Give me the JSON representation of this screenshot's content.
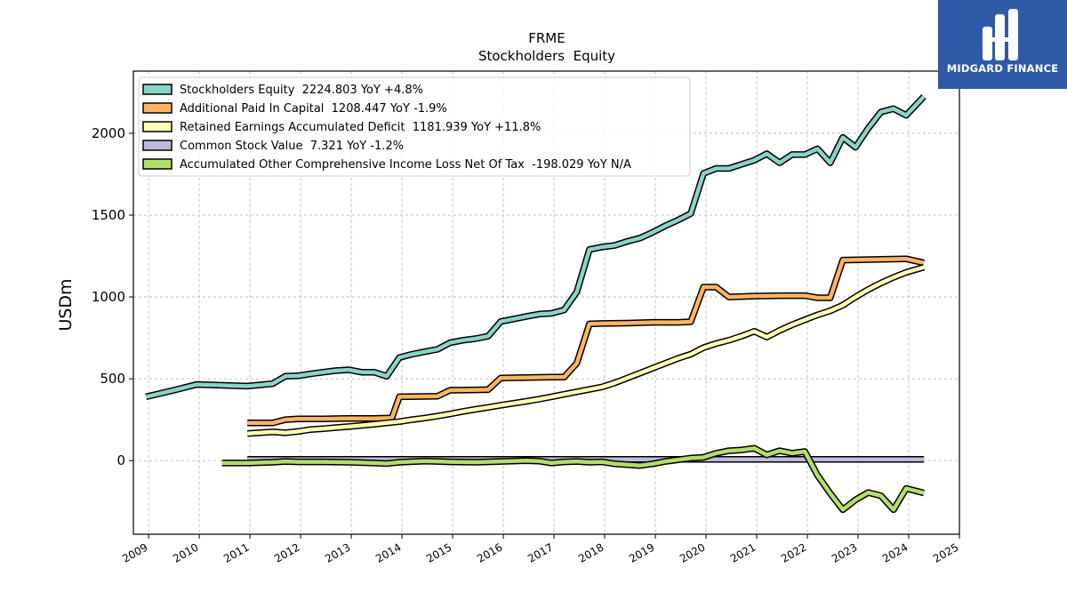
{
  "brand": {
    "name": "MIDGARD FINANCE",
    "bg_color": "#2f5aa8"
  },
  "chart_data": {
    "type": "line",
    "title": "FRME",
    "subtitle": "Stockholders  Equity",
    "ylabel": "USDm",
    "xlabel": "",
    "xlim": [
      2008.7,
      2025.0
    ],
    "ylim": [
      -450,
      2380
    ],
    "x_ticks": [
      2009,
      2010,
      2011,
      2012,
      2013,
      2014,
      2015,
      2016,
      2017,
      2018,
      2019,
      2020,
      2021,
      2022,
      2023,
      2024,
      2025
    ],
    "y_ticks": [
      0,
      500,
      1000,
      1500,
      2000
    ],
    "grid": true,
    "legend_position": "top-left",
    "series": [
      {
        "name": "Stockholders Equity",
        "legend_label": "Stockholders Equity  2224.803 YoY +4.8%",
        "color": "#8ad3c7",
        "x": [
          2008.95,
          2009.5,
          2009.95,
          2010.95,
          2011.45,
          2011.7,
          2011.95,
          2012.2,
          2012.45,
          2012.7,
          2012.95,
          2013.2,
          2013.45,
          2013.7,
          2013.95,
          2014.2,
          2014.45,
          2014.7,
          2014.95,
          2015.2,
          2015.45,
          2015.7,
          2015.95,
          2016.2,
          2016.45,
          2016.7,
          2016.95,
          2017.2,
          2017.45,
          2017.7,
          2017.95,
          2018.2,
          2018.45,
          2018.7,
          2018.95,
          2019.2,
          2019.45,
          2019.7,
          2019.95,
          2020.2,
          2020.45,
          2020.7,
          2020.95,
          2021.2,
          2021.45,
          2021.7,
          2021.95,
          2022.2,
          2022.45,
          2022.7,
          2022.95,
          2023.2,
          2023.45,
          2023.7,
          2023.95,
          2024.3
        ],
        "values": [
          390,
          430,
          465,
          455,
          470,
          515,
          518,
          530,
          540,
          550,
          555,
          540,
          540,
          515,
          630,
          650,
          665,
          680,
          720,
          735,
          745,
          760,
          850,
          865,
          880,
          895,
          900,
          920,
          1030,
          1290,
          1305,
          1315,
          1340,
          1360,
          1395,
          1435,
          1470,
          1510,
          1755,
          1785,
          1785,
          1810,
          1835,
          1875,
          1820,
          1870,
          1870,
          1905,
          1820,
          1975,
          1915,
          2030,
          2130,
          2150,
          2110,
          2224.8
        ]
      },
      {
        "name": "Additional Paid In Capital",
        "legend_label": "Additional Paid In Capital  1208.447 YoY -1.9%",
        "color": "#fdb462",
        "x": [
          2010.95,
          2011.45,
          2011.7,
          2011.95,
          2012.45,
          2012.95,
          2013.45,
          2013.8,
          2013.95,
          2014.45,
          2014.7,
          2014.95,
          2015.45,
          2015.7,
          2015.95,
          2016.45,
          2016.95,
          2017.2,
          2017.45,
          2017.7,
          2017.95,
          2018.45,
          2018.95,
          2019.45,
          2019.7,
          2019.95,
          2020.2,
          2020.45,
          2020.95,
          2021.45,
          2021.7,
          2021.95,
          2022.2,
          2022.45,
          2022.7,
          2023.45,
          2023.95,
          2024.3
        ],
        "values": [
          230,
          230,
          250,
          255,
          255,
          258,
          258,
          260,
          390,
          392,
          393,
          430,
          432,
          433,
          505,
          507,
          510,
          510,
          595,
          835,
          838,
          840,
          845,
          845,
          848,
          1060,
          1060,
          1000,
          1005,
          1008,
          1008,
          1008,
          995,
          995,
          1225,
          1230,
          1233,
          1208.4
        ]
      },
      {
        "name": "Retained Earnings Accumulated Deficit",
        "legend_label": "Retained Earnings Accumulated Deficit  1181.939 YoY +11.8%",
        "color": "#ffffb3",
        "x": [
          2010.95,
          2011.45,
          2011.7,
          2011.95,
          2012.2,
          2012.45,
          2012.7,
          2012.95,
          2013.2,
          2013.45,
          2013.7,
          2013.95,
          2014.2,
          2014.45,
          2014.7,
          2014.95,
          2015.2,
          2015.45,
          2015.7,
          2015.95,
          2016.2,
          2016.45,
          2016.7,
          2016.95,
          2017.2,
          2017.45,
          2017.7,
          2017.95,
          2018.2,
          2018.45,
          2018.7,
          2018.95,
          2019.2,
          2019.45,
          2019.7,
          2019.95,
          2020.2,
          2020.45,
          2020.7,
          2020.95,
          2021.2,
          2021.45,
          2021.7,
          2021.95,
          2022.2,
          2022.45,
          2022.7,
          2022.95,
          2023.2,
          2023.45,
          2023.7,
          2023.95,
          2024.3
        ],
        "values": [
          165,
          175,
          170,
          178,
          190,
          195,
          202,
          208,
          215,
          222,
          230,
          238,
          250,
          260,
          272,
          285,
          300,
          313,
          325,
          338,
          350,
          362,
          375,
          390,
          405,
          420,
          435,
          450,
          475,
          505,
          535,
          565,
          595,
          625,
          650,
          690,
          715,
          735,
          760,
          790,
          755,
          795,
          830,
          860,
          890,
          915,
          950,
          1000,
          1045,
          1085,
          1120,
          1150,
          1181.9
        ]
      },
      {
        "name": "Common Stock Value",
        "legend_label": "Common Stock Value  7.321 YoY -1.2%",
        "color": "#bebada",
        "x": [
          2010.95,
          2016.0,
          2021.0,
          2024.3
        ],
        "values": [
          8,
          8,
          7.4,
          7.3
        ]
      },
      {
        "name": "Accumulated Other Comprehensive Income Loss Net Of Tax",
        "legend_label": "Accumulated Other Comprehensive Income Loss Net Of Tax  -198.029 YoY N/A",
        "color": "#b3de69",
        "x": [
          2010.45,
          2010.95,
          2011.45,
          2011.7,
          2011.95,
          2012.45,
          2012.95,
          2013.45,
          2013.7,
          2013.95,
          2014.45,
          2014.7,
          2014.95,
          2015.45,
          2015.95,
          2016.45,
          2016.7,
          2016.95,
          2017.2,
          2017.45,
          2017.7,
          2017.95,
          2018.2,
          2018.45,
          2018.7,
          2018.95,
          2019.2,
          2019.45,
          2019.7,
          2019.95,
          2020.2,
          2020.45,
          2020.7,
          2020.95,
          2021.2,
          2021.45,
          2021.7,
          2021.95,
          2022.2,
          2022.45,
          2022.7,
          2022.95,
          2023.2,
          2023.45,
          2023.7,
          2023.95,
          2024.3
        ],
        "values": [
          -15,
          -15,
          -10,
          -5,
          -8,
          -8,
          -10,
          -15,
          -18,
          -10,
          -3,
          -5,
          -8,
          -10,
          -5,
          0,
          -3,
          -15,
          -8,
          -5,
          -10,
          -8,
          -20,
          -25,
          -30,
          -20,
          -5,
          5,
          15,
          20,
          45,
          60,
          65,
          75,
          35,
          60,
          45,
          55,
          -90,
          -200,
          -300,
          -240,
          -195,
          -215,
          -300,
          -170,
          -198
        ]
      }
    ]
  }
}
